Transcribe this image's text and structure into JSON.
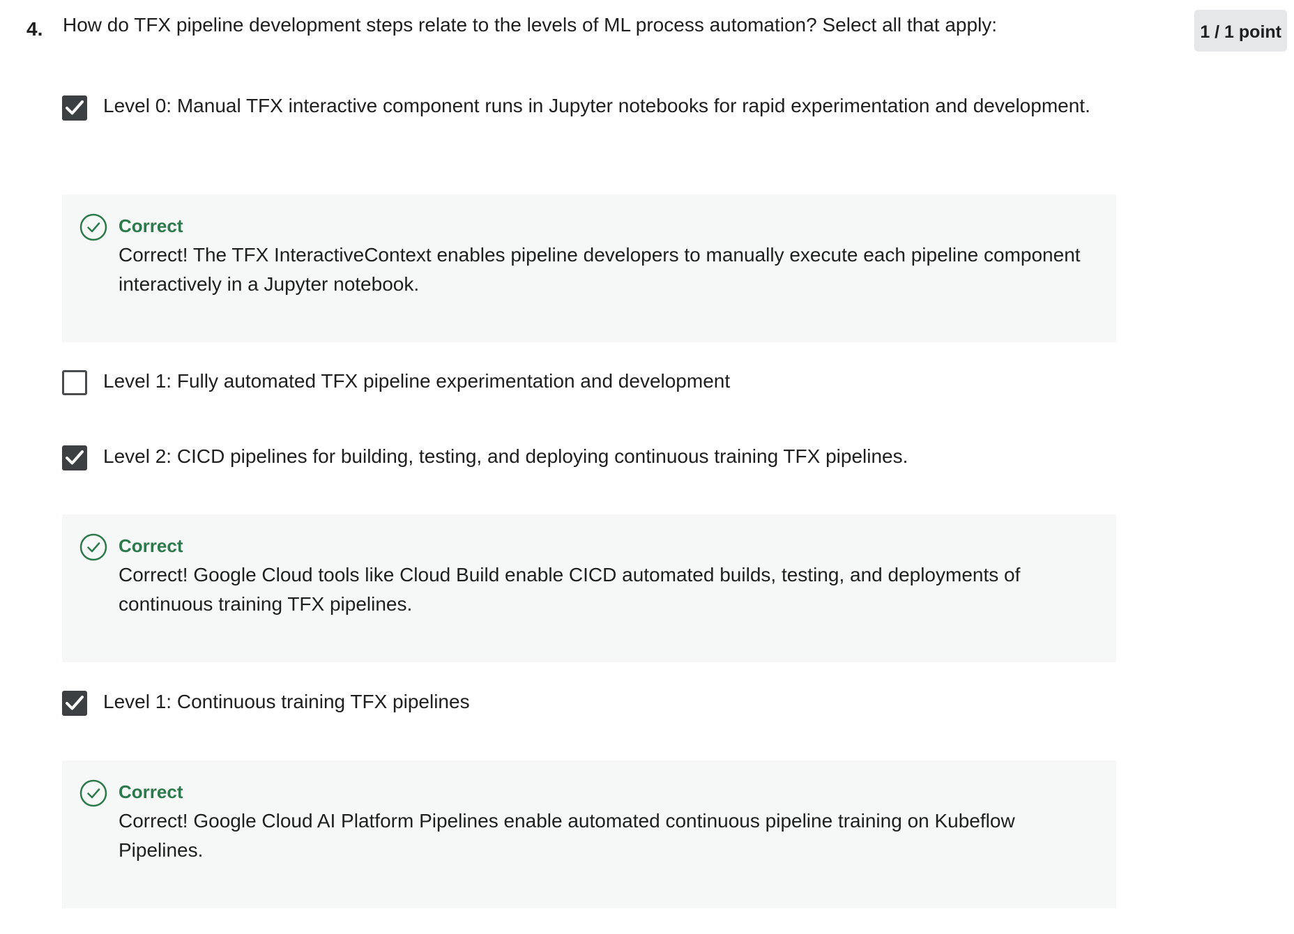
{
  "question": {
    "number": "4.",
    "text": "How do TFX pipeline development steps relate to the levels of ML process automation? Select all that apply:",
    "points": "1 / 1 point"
  },
  "options": [
    {
      "label": "Level 0: Manual TFX interactive component runs in Jupyter notebooks for rapid experimentation and development.",
      "checked": true,
      "feedback": {
        "title": "Correct",
        "text": "Correct! The TFX InteractiveContext enables pipeline developers to manually execute each pipeline component interactively in a Jupyter notebook."
      }
    },
    {
      "label": "Level 1: Fully automated TFX pipeline experimentation and development",
      "checked": false
    },
    {
      "label": "Level 2: CICD pipelines for building, testing, and deploying continuous training TFX pipelines.",
      "checked": true,
      "feedback": {
        "title": "Correct",
        "text": "Correct! Google Cloud tools like Cloud Build enable CICD automated builds, testing, and deployments of continuous training TFX pipelines."
      }
    },
    {
      "label": "Level 1: Continuous training TFX pipelines",
      "checked": true,
      "feedback": {
        "title": "Correct",
        "text": "Correct! Google Cloud AI Platform Pipelines enable automated continuous pipeline training on Kubeflow Pipelines."
      }
    }
  ],
  "icons": {
    "checkbox_checked": "checkmark-icon",
    "feedback": "check-circle-icon"
  },
  "colors": {
    "correct_green": "#2c7a4b",
    "checkbox_fill": "#3d4042",
    "feedback_bg": "#f6f7f7",
    "badge_bg": "#e5e7e8"
  }
}
